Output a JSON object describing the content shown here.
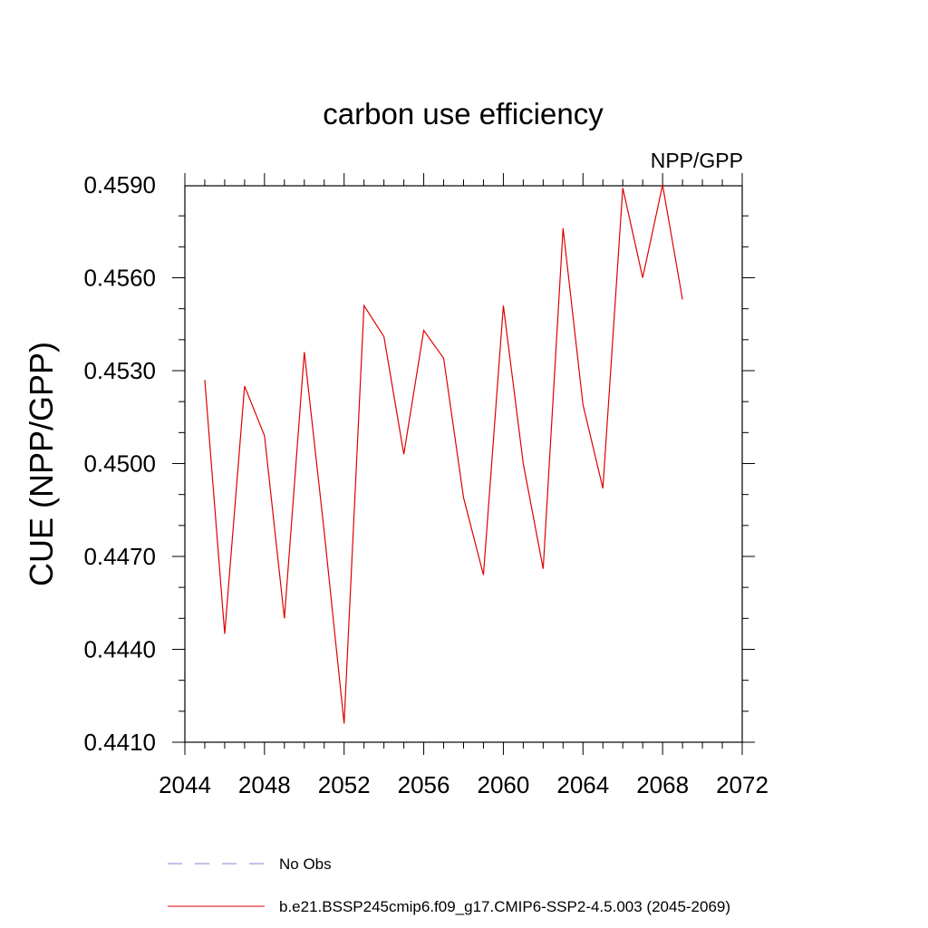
{
  "chart_data": {
    "type": "line",
    "title": "carbon use efficiency",
    "subtitle": "NPP/GPP",
    "ylabel": "CUE  (NPP/GPP)",
    "xlabel": "",
    "xlim": [
      2044,
      2072
    ],
    "ylim": [
      0.441,
      0.4595
    ],
    "x_ticks": [
      "2044",
      "2048",
      "2052",
      "2056",
      "2060",
      "2064",
      "2068",
      "2072"
    ],
    "y_ticks": [
      "0.4410",
      "0.4440",
      "0.4470",
      "0.4500",
      "0.4530",
      "0.4560",
      "0.4590"
    ],
    "grid": false,
    "legend_position": "bottom",
    "series": [
      {
        "name": "b.e21.BSSP245cmip6.f09_g17.CMIP6-SSP2-4.5.003 (2045-2069)",
        "color": "#e00000",
        "x": [
          2045,
          2046,
          2047,
          2048,
          2049,
          2050,
          2051,
          2052,
          2053,
          2054,
          2055,
          2056,
          2057,
          2058,
          2059,
          2060,
          2061,
          2062,
          2063,
          2064,
          2065,
          2066,
          2067,
          2068,
          2069
        ],
        "values": [
          0.4527,
          0.4445,
          0.4525,
          0.4509,
          0.445,
          0.4536,
          0.4478,
          0.4416,
          0.4551,
          0.4541,
          0.4503,
          0.4543,
          0.4534,
          0.4489,
          0.4464,
          0.4551,
          0.45,
          0.4466,
          0.4576,
          0.4519,
          0.4492,
          0.4589,
          0.456,
          0.459,
          0.4553
        ]
      }
    ],
    "legend": [
      {
        "label": "No Obs",
        "color": "#8a7fd0",
        "dashed": true
      },
      {
        "label": "b.e21.BSSP245cmip6.f09_g17.CMIP6-SSP2-4.5.003 (2045-2069)",
        "color": "#e00000",
        "dashed": false
      }
    ]
  }
}
